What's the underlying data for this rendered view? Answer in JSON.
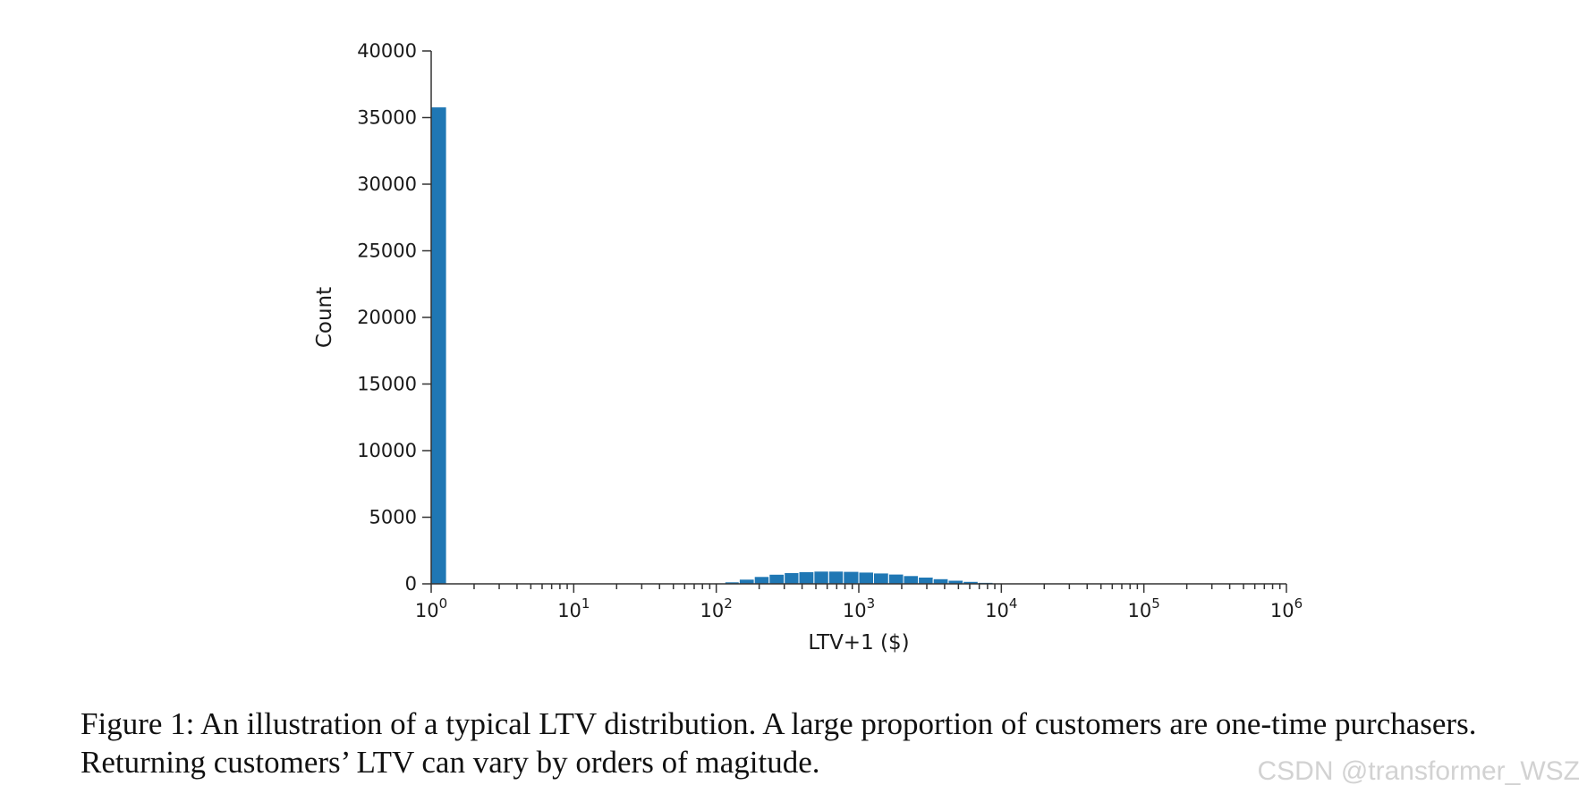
{
  "figure": {
    "caption": "Figure 1: An illustration of a typical LTV distribution. A large proportion of customers are one-time purchasers. Returning customers’ LTV can vary by orders of magitude.",
    "watermark": "CSDN @transformer_WSZ"
  },
  "chart_data": {
    "type": "bar",
    "title": "",
    "xlabel": "LTV+1 ($)",
    "ylabel": "Count",
    "xscale": "log",
    "xlim": [
      1,
      1000000
    ],
    "ylim": [
      0,
      40000
    ],
    "grid": false,
    "bar_color": "#1f77b4",
    "y_ticks": [
      {
        "value": 0,
        "label": "0"
      },
      {
        "value": 5000,
        "label": "5000"
      },
      {
        "value": 10000,
        "label": "10000"
      },
      {
        "value": 15000,
        "label": "15000"
      },
      {
        "value": 20000,
        "label": "20000"
      },
      {
        "value": 25000,
        "label": "25000"
      },
      {
        "value": 30000,
        "label": "30000"
      },
      {
        "value": 35000,
        "label": "35000"
      },
      {
        "value": 40000,
        "label": "40000"
      }
    ],
    "x_ticks": [
      {
        "value": 1,
        "base": "10",
        "exp": "0"
      },
      {
        "value": 10,
        "base": "10",
        "exp": "1"
      },
      {
        "value": 100,
        "base": "10",
        "exp": "2"
      },
      {
        "value": 1000,
        "base": "10",
        "exp": "3"
      },
      {
        "value": 10000,
        "base": "10",
        "exp": "4"
      },
      {
        "value": 100000,
        "base": "10",
        "exp": "5"
      },
      {
        "value": 1000000,
        "base": "10",
        "exp": "6"
      }
    ],
    "bins": [
      {
        "x0": 1.0,
        "x1": 1.28,
        "count": 35800
      },
      {
        "x0": 115,
        "x1": 145,
        "count": 150
      },
      {
        "x0": 145,
        "x1": 185,
        "count": 350
      },
      {
        "x0": 185,
        "x1": 235,
        "count": 550
      },
      {
        "x0": 235,
        "x1": 300,
        "count": 720
      },
      {
        "x0": 300,
        "x1": 380,
        "count": 840
      },
      {
        "x0": 380,
        "x1": 485,
        "count": 910
      },
      {
        "x0": 485,
        "x1": 615,
        "count": 950
      },
      {
        "x0": 615,
        "x1": 780,
        "count": 950
      },
      {
        "x0": 780,
        "x1": 1000,
        "count": 930
      },
      {
        "x0": 1000,
        "x1": 1270,
        "count": 880
      },
      {
        "x0": 1270,
        "x1": 1620,
        "count": 810
      },
      {
        "x0": 1620,
        "x1": 2060,
        "count": 730
      },
      {
        "x0": 2060,
        "x1": 2620,
        "count": 620
      },
      {
        "x0": 2620,
        "x1": 3330,
        "count": 500
      },
      {
        "x0": 3330,
        "x1": 4240,
        "count": 380
      },
      {
        "x0": 4240,
        "x1": 5400,
        "count": 270
      },
      {
        "x0": 5400,
        "x1": 6870,
        "count": 180
      },
      {
        "x0": 6870,
        "x1": 8740,
        "count": 110
      },
      {
        "x0": 8740,
        "x1": 11120,
        "count": 65
      },
      {
        "x0": 11120,
        "x1": 14150,
        "count": 35
      },
      {
        "x0": 14150,
        "x1": 18000,
        "count": 15
      }
    ]
  }
}
